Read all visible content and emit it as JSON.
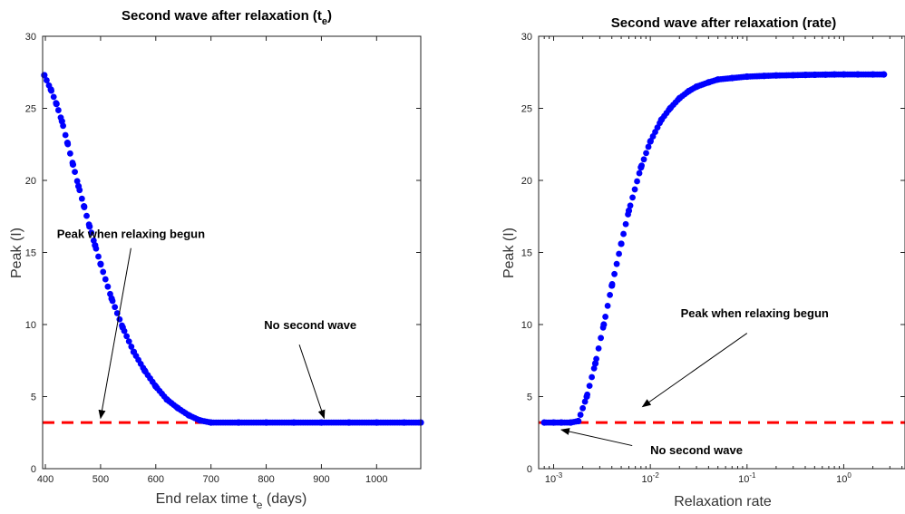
{
  "chart_data": [
    {
      "type": "scatter",
      "title": "Second wave after relaxation (t",
      "title_sub": "e",
      "title_end": ")",
      "xlabel": "End relax time t",
      "xlabel_sub": "e",
      "xlabel_end": " (days)",
      "ylabel": "Peak (I)",
      "xlim": [
        395,
        1080
      ],
      "ylim": [
        0,
        30
      ],
      "xscale": "linear",
      "x_ticks": [
        400,
        500,
        600,
        700,
        800,
        900,
        1000
      ],
      "x_tick_labels": [
        "400",
        "500",
        "600",
        "700",
        "800",
        "900",
        "1000"
      ],
      "y_ticks": [
        0,
        5,
        10,
        15,
        20,
        25,
        30
      ],
      "y_tick_labels": [
        "0",
        "5",
        "10",
        "15",
        "20",
        "25",
        "30"
      ],
      "grid": false,
      "series": [
        {
          "color": "#0000ff",
          "marker": "asterisk",
          "x": [
            398,
            410,
            420,
            430,
            440,
            450,
            460,
            470,
            480,
            490,
            500,
            520,
            540,
            560,
            580,
            600,
            620,
            640,
            660,
            680,
            700,
            750,
            800,
            850,
            900,
            950,
            1000,
            1050,
            1080
          ],
          "y": [
            27.3,
            26.3,
            25.3,
            24.1,
            22.6,
            21.1,
            19.6,
            18.2,
            16.8,
            15.5,
            14.2,
            11.8,
            9.8,
            8.1,
            6.8,
            5.7,
            4.8,
            4.2,
            3.7,
            3.35,
            3.2,
            3.2,
            3.2,
            3.2,
            3.2,
            3.2,
            3.2,
            3.2,
            3.2
          ]
        }
      ],
      "reference_line": {
        "y": 3.2,
        "color": "#ff0000",
        "style": "dashed"
      },
      "annotations": [
        {
          "text": "Peak when relaxing begun",
          "text_x": 555,
          "text_y": 16,
          "arrow_to_x": 500,
          "arrow_to_y": 3.5
        },
        {
          "text": "No second wave",
          "text_x": 880,
          "text_y": 9.7,
          "arrow_from_x": 860,
          "arrow_from_y": 8.6,
          "arrow_to_x": 905,
          "arrow_to_y": 3.5
        }
      ]
    },
    {
      "type": "scatter",
      "title": "Second wave after relaxation (rate)",
      "xlabel": "Relaxation rate",
      "ylabel": "Peak (I)",
      "xlim": [
        0.0007,
        4.3
      ],
      "ylim": [
        0,
        30
      ],
      "xscale": "log",
      "x_ticks": [
        0.001,
        0.01,
        0.1,
        1
      ],
      "x_tick_labels": [
        [
          "10",
          "-3"
        ],
        [
          "10",
          "-2"
        ],
        [
          "10",
          "-1"
        ],
        [
          "10",
          "0"
        ]
      ],
      "y_ticks": [
        0,
        5,
        10,
        15,
        20,
        25,
        30
      ],
      "y_tick_labels": [
        "0",
        "5",
        "10",
        "15",
        "20",
        "25",
        "30"
      ],
      "grid": false,
      "series": [
        {
          "color": "#0000ff",
          "marker": "asterisk",
          "x": [
            0.0008,
            0.001,
            0.0012,
            0.0015,
            0.0018,
            0.0022,
            0.0027,
            0.0033,
            0.004,
            0.005,
            0.006,
            0.008,
            0.01,
            0.013,
            0.016,
            0.02,
            0.025,
            0.03,
            0.04,
            0.05,
            0.07,
            0.1,
            0.15,
            0.2,
            0.3,
            0.4,
            0.5,
            0.65,
            0.8,
            1.0,
            1.4,
            2.0,
            2.6
          ],
          "y": [
            3.2,
            3.2,
            3.2,
            3.2,
            3.3,
            5.0,
            7.3,
            10.0,
            12.7,
            15.6,
            17.9,
            20.9,
            22.7,
            24.2,
            25.0,
            25.7,
            26.2,
            26.5,
            26.8,
            27.0,
            27.1,
            27.2,
            27.25,
            27.28,
            27.3,
            27.32,
            27.33,
            27.34,
            27.35,
            27.35,
            27.35,
            27.35,
            27.35
          ]
        }
      ],
      "reference_line": {
        "y": 3.2,
        "color": "#ff0000",
        "style": "dashed"
      },
      "annotations": [
        {
          "text": "Peak when relaxing begun",
          "text_x": 0.12,
          "text_y": 10.5,
          "arrow_from_x": 0.1,
          "arrow_from_y": 9.4,
          "arrow_to_x": 0.0083,
          "arrow_to_y": 4.3
        },
        {
          "text": "No second wave",
          "text_x": 0.03,
          "text_y": 1.0,
          "arrow_from_x": 0.0065,
          "arrow_from_y": 1.6,
          "arrow_to_x": 0.0012,
          "arrow_to_y": 2.7
        }
      ]
    }
  ]
}
